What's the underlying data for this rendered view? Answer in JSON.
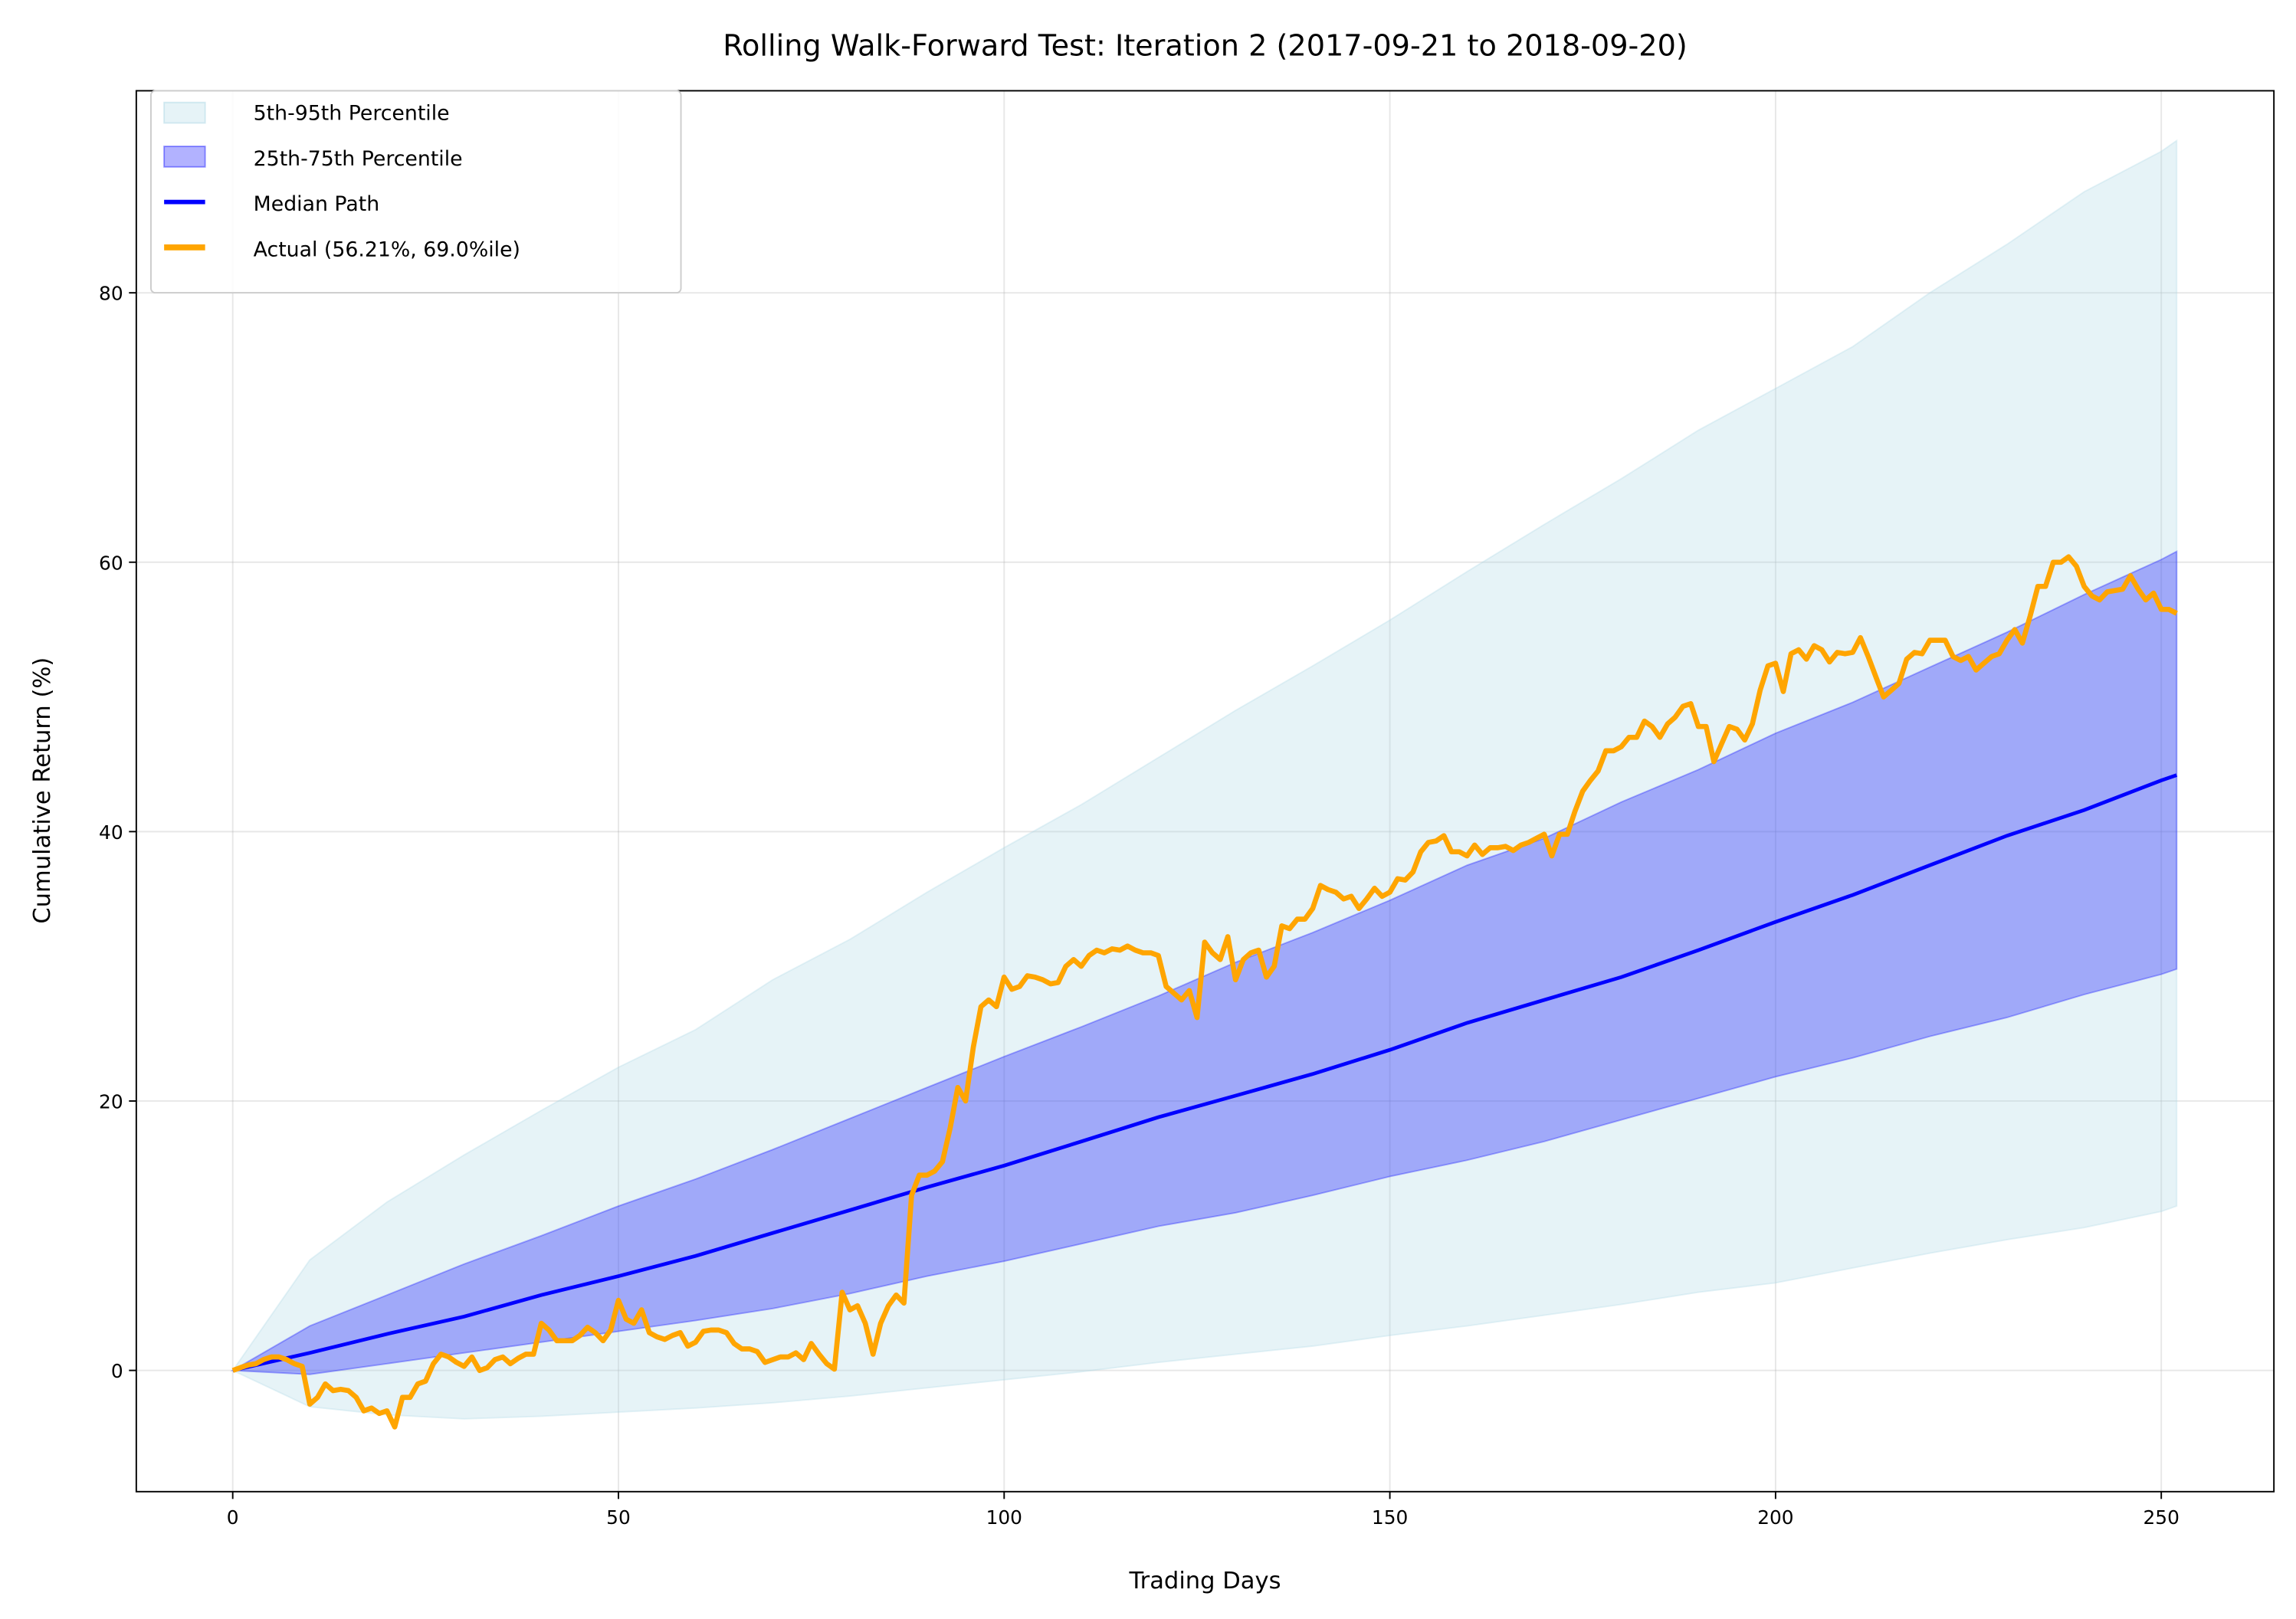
{
  "chart_data": {
    "type": "line",
    "title": "Rolling Walk-Forward Test: Iteration 2 (2017-09-21 to 2018-09-20)",
    "xlabel": "Trading Days",
    "ylabel": "Cumulative Return (%)",
    "xlim": [
      -12.5,
      264.6
    ],
    "ylim": [
      -9.0,
      95.0
    ],
    "xticks": [
      0,
      50,
      100,
      150,
      200,
      250
    ],
    "yticks": [
      0,
      20,
      40,
      60,
      80
    ],
    "grid": true,
    "legend_position": "top-left",
    "colors": {
      "band_outer": "#add8e6",
      "band_inner": "#0000ff",
      "median": "#0000ff",
      "actual": "#ffa500"
    },
    "band_x": [
      0,
      10,
      20,
      30,
      40,
      50,
      60,
      70,
      80,
      90,
      100,
      110,
      120,
      130,
      140,
      150,
      160,
      170,
      180,
      190,
      200,
      210,
      220,
      230,
      240,
      250,
      252
    ],
    "series": [
      {
        "name": "5th-95th Percentile",
        "kind": "band",
        "lower": [
          0,
          -2.7,
          -3.3,
          -3.6,
          -3.4,
          -3.1,
          -2.8,
          -2.4,
          -1.9,
          -1.3,
          -0.7,
          -0.1,
          0.6,
          1.2,
          1.8,
          2.6,
          3.3,
          4.1,
          4.9,
          5.8,
          6.5,
          7.6,
          8.7,
          9.7,
          10.6,
          11.8,
          12.2
        ],
        "upper": [
          0,
          8.2,
          12.5,
          16,
          19.3,
          22.5,
          25.3,
          29,
          32,
          35.5,
          38.8,
          42,
          45.5,
          49,
          52.3,
          55.7,
          59.3,
          62.8,
          66.2,
          69.8,
          72.9,
          76,
          80,
          83.6,
          87.5,
          90.5,
          91.3
        ]
      },
      {
        "name": "25th-75th Percentile",
        "kind": "band",
        "lower": [
          0,
          -0.3,
          0.5,
          1.3,
          2.1,
          2.9,
          3.7,
          4.6,
          5.7,
          7,
          8.1,
          9.4,
          10.7,
          11.7,
          13,
          14.4,
          15.6,
          17,
          18.6,
          20.2,
          21.8,
          23.2,
          24.8,
          26.2,
          27.9,
          29.4,
          29.8
        ],
        "upper": [
          0,
          3.3,
          5.6,
          7.9,
          10,
          12.2,
          14.2,
          16.4,
          18.7,
          21,
          23.3,
          25.5,
          27.8,
          30.3,
          32.5,
          34.9,
          37.5,
          39.5,
          42.2,
          44.6,
          47.3,
          49.6,
          52.2,
          54.8,
          57.6,
          60.2,
          60.8
        ]
      },
      {
        "name": "Median Path",
        "kind": "line",
        "values": [
          0,
          1.3,
          2.7,
          4,
          5.6,
          7,
          8.5,
          10.2,
          11.9,
          13.6,
          15.2,
          17,
          18.8,
          20.4,
          22,
          23.8,
          25.8,
          27.5,
          29.2,
          31.2,
          33.3,
          35.3,
          37.5,
          39.7,
          41.6,
          43.8,
          44.2
        ]
      },
      {
        "name": "Actual (56.21%, 69.0%ile)",
        "kind": "line",
        "final_return_pct": 56.21,
        "percentile": 69.0,
        "values": [
          0,
          0.2,
          0.4,
          0.5,
          0.8,
          1,
          1,
          0.8,
          0.5,
          0.3,
          -2.5,
          -2,
          -1,
          -1.5,
          -1.4,
          -1.5,
          -2,
          -3,
          -2.8,
          -3.2,
          -3,
          -4.2,
          -2,
          -2,
          -1,
          -0.8,
          0.5,
          1.2,
          1,
          0.6,
          0.3,
          1,
          0,
          0.2,
          0.8,
          1,
          0.5,
          0.9,
          1.2,
          1.2,
          3.5,
          3,
          2.2,
          2.2,
          2.2,
          2.6,
          3.2,
          2.8,
          2.2,
          3,
          5.2,
          3.8,
          3.5,
          4.5,
          2.8,
          2.5,
          2.3,
          2.6,
          2.8,
          1.8,
          2.1,
          2.9,
          3,
          3,
          2.8,
          2,
          1.6,
          1.6,
          1.4,
          0.6,
          0.8,
          1,
          1,
          1.3,
          0.8,
          2,
          1.2,
          0.5,
          0.1,
          5.8,
          4.5,
          4.8,
          3.5,
          1.2,
          3.5,
          4.8,
          5.6,
          5,
          13,
          14.5,
          14.5,
          14.8,
          15.5,
          18,
          21,
          20,
          24,
          27,
          27.5,
          27,
          29.2,
          28.3,
          28.5,
          29.3,
          29.2,
          29,
          28.7,
          28.8,
          30,
          30.5,
          30,
          30.8,
          31.2,
          31,
          31.3,
          31.2,
          31.5,
          31.2,
          31,
          31,
          30.8,
          28.5,
          28,
          27.5,
          28.2,
          26.2,
          31.8,
          31,
          30.5,
          32.2,
          29,
          30.5,
          31,
          31.2,
          29.2,
          30,
          33,
          32.8,
          33.5,
          33.5,
          34.3,
          36,
          35.7,
          35.5,
          35,
          35.2,
          34.3,
          35,
          35.8,
          35.2,
          35.5,
          36.5,
          36.4,
          37,
          38.5,
          39.2,
          39.3,
          39.7,
          38.5,
          38.5,
          38.2,
          39,
          38.3,
          38.8,
          38.8,
          38.9,
          38.6,
          39,
          39.2,
          39.5,
          39.8,
          38.2,
          39.8,
          39.8,
          41.5,
          43,
          43.8,
          44.5,
          46,
          46,
          46.3,
          47,
          47,
          48.2,
          47.8,
          47,
          48,
          48.5,
          49.3,
          49.5,
          47.8,
          47.8,
          45.2,
          46.5,
          47.8,
          47.6,
          46.8,
          48,
          50.5,
          52.3,
          52.5,
          50.4,
          53.2,
          53.5,
          52.8,
          53.8,
          53.5,
          52.6,
          53.3,
          53.2,
          53.3,
          54.4,
          53,
          51.5,
          50,
          50.5,
          51,
          52.8,
          53.3,
          53.2,
          54.2,
          54.2,
          54.2,
          53,
          52.7,
          53,
          52,
          52.5,
          53,
          53.2,
          54.2,
          55,
          54,
          56,
          58.2,
          58.2,
          60,
          60,
          60.4,
          59.7,
          58.2,
          57.5,
          57.2,
          57.8,
          57.9,
          58,
          59,
          58,
          57.2,
          57.7,
          56.5,
          56.5,
          56.2
        ]
      }
    ]
  }
}
